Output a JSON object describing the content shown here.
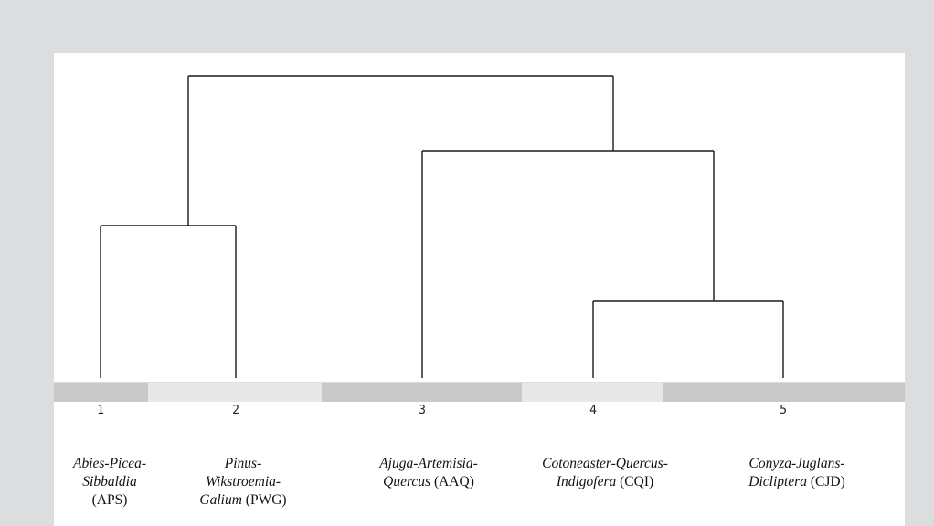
{
  "diagram": {
    "type": "dendrogram",
    "leaves": [
      {
        "num": "1",
        "label_lines": [
          {
            "italic": "Abies-Picea-"
          },
          {
            "italic": "Sibbaldia"
          },
          {
            "plain": "(APS)"
          }
        ]
      },
      {
        "num": "2",
        "label_lines": [
          {
            "italic": "Pinus-"
          },
          {
            "italic": "Wikstroemia-"
          },
          {
            "italic": "Galium",
            "plain": " (PWG)"
          }
        ]
      },
      {
        "num": "3",
        "label_lines": [
          {
            "italic": "Ajuga-Artemisia-"
          },
          {
            "italic": "Quercus",
            "plain": " (AAQ)"
          }
        ]
      },
      {
        "num": "4",
        "label_lines": [
          {
            "italic": "Cotoneaster-Quercus-"
          },
          {
            "italic": "Indigofera",
            "plain": " (CQI)"
          }
        ]
      },
      {
        "num": "5",
        "label_lines": [
          {
            "italic": "Conyza-Juglans-"
          },
          {
            "italic": "Dicliptera",
            "plain": " (CJD)"
          }
        ]
      }
    ],
    "merges": [
      {
        "left": "1",
        "right": "2",
        "level": 2
      },
      {
        "left": "4",
        "right": "5",
        "level": 1
      },
      {
        "left": "3",
        "right": "4+5",
        "level": 3
      },
      {
        "left": "1+2",
        "right": "3+4+5",
        "level": 4
      }
    ],
    "colors": {
      "background": "#dcddde",
      "panel": "#ffffff",
      "band_dark": "#c9c9c9",
      "band_light": "#e8e8e8",
      "lines": "#1a1a1a"
    }
  }
}
